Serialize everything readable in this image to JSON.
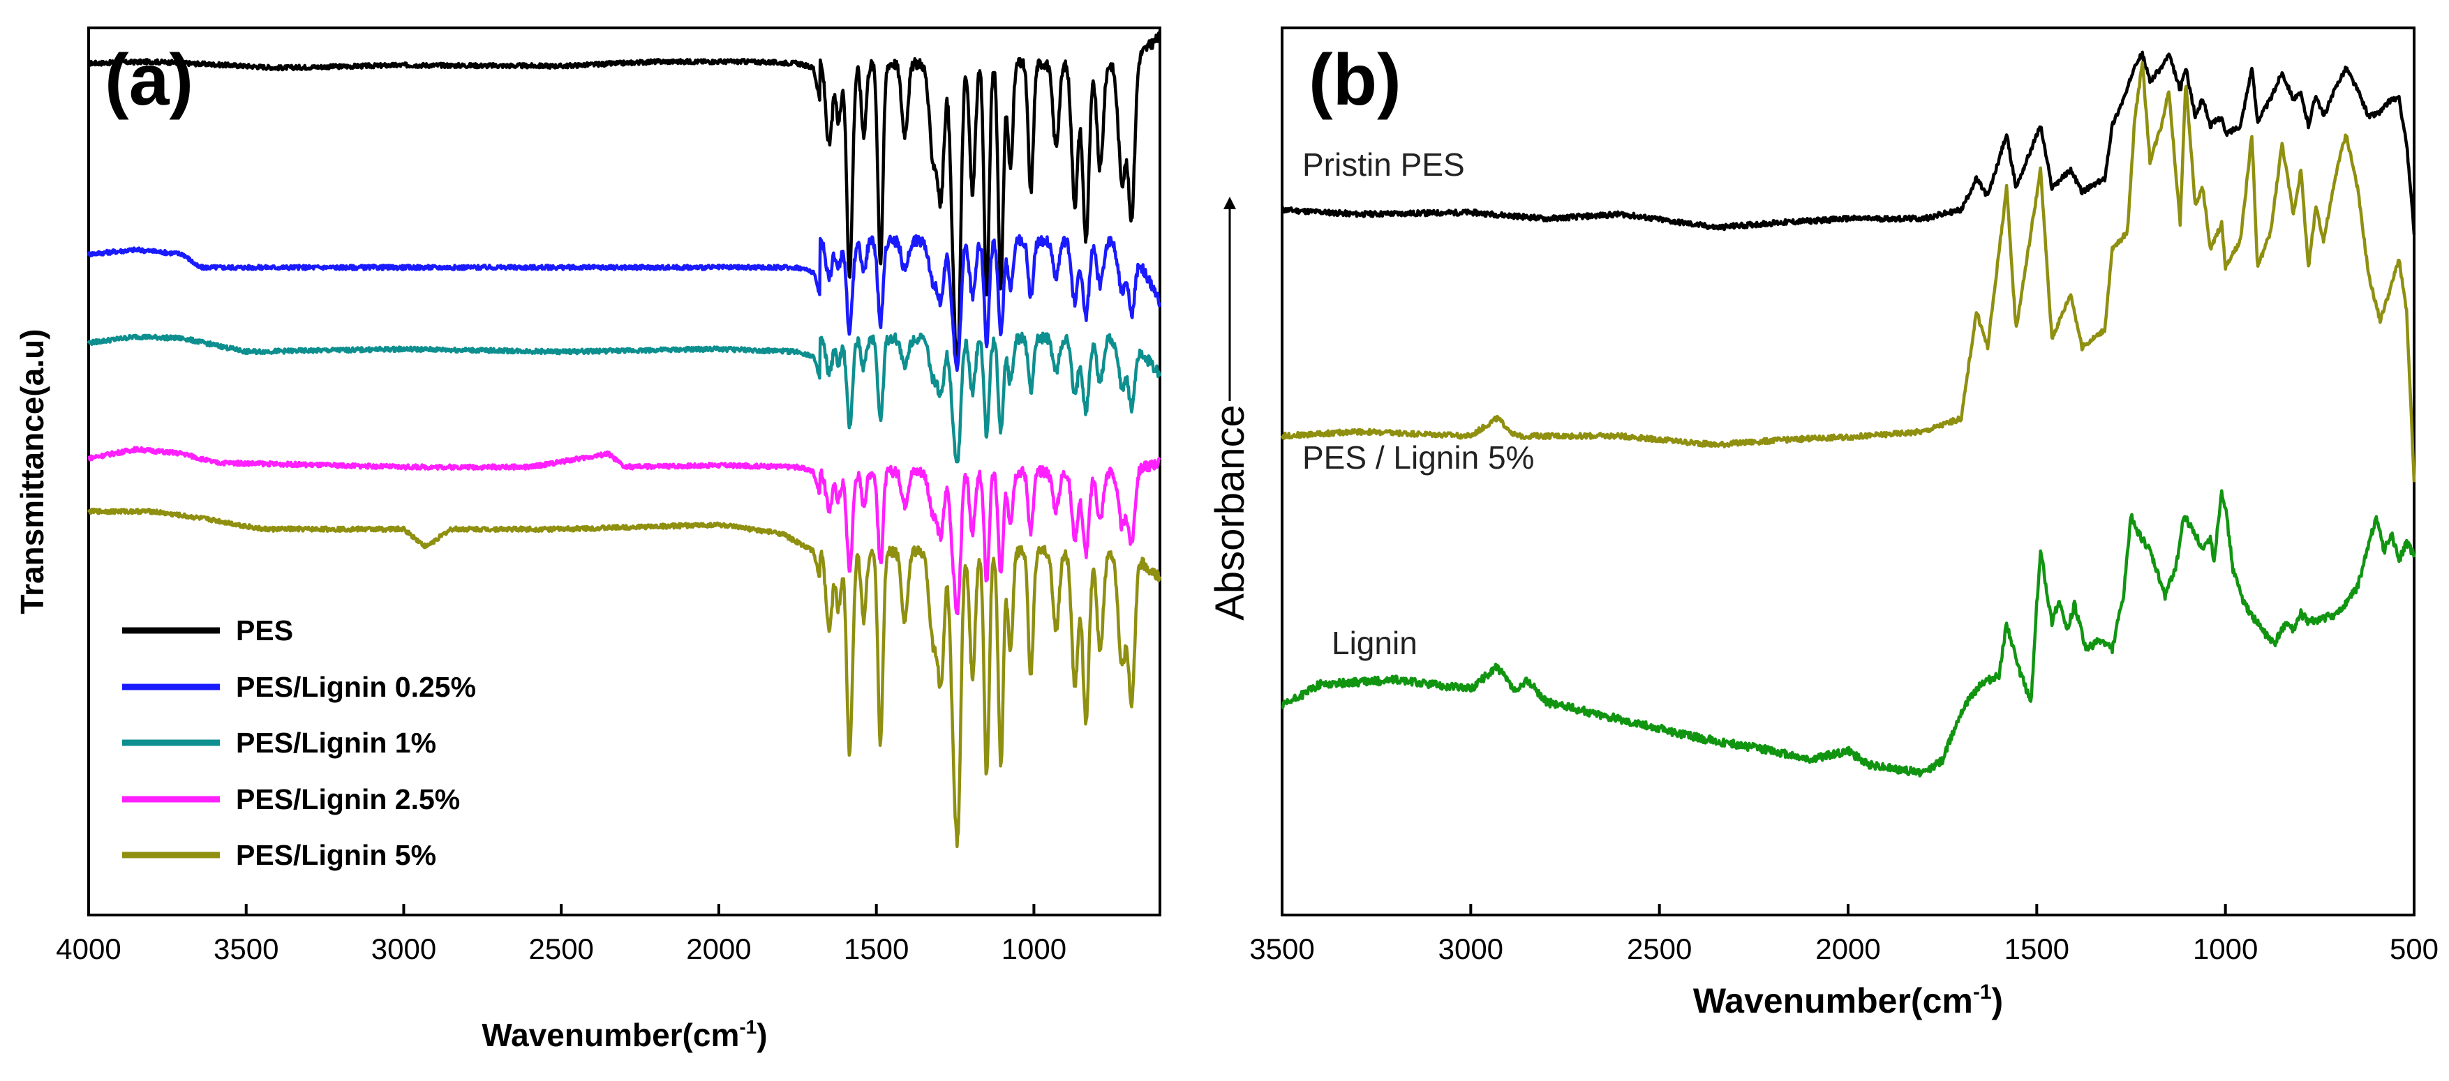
{
  "chart_data": [
    {
      "panel": "(a)",
      "type": "line",
      "title": "",
      "xlabel": "Wavenumber(cm",
      "xlabel_sup": "-1",
      "xlabel_end": ")",
      "ylabel": "Transmittance(a.u)",
      "xlim": [
        4000,
        600
      ],
      "ylim": [
        0,
        10
      ],
      "x_ticks": [
        4000,
        3500,
        3000,
        2500,
        2000,
        1500,
        1000
      ],
      "x_tick_labels": [
        "4000",
        "3500",
        "3000",
        "2500",
        "2000",
        "1500",
        "1000"
      ],
      "y_ticks_visible": false,
      "legend": {
        "placement": "bottom-left",
        "entries": [
          "PES",
          "PES/Lignin 0.25%",
          "PES/Lignin 1%",
          "PES/Lignin 2.5%",
          "PES/Lignin 5%"
        ]
      },
      "series": [
        {
          "name": "PES",
          "color": "#000000",
          "baseline": 9.6,
          "depth": 2.9,
          "end": 9.9,
          "points": [
            [
              4000,
              9.6
            ],
            [
              3800,
              9.62
            ],
            [
              3500,
              9.57
            ],
            [
              3400,
              9.55
            ],
            [
              3000,
              9.58
            ],
            [
              2500,
              9.57
            ],
            [
              2200,
              9.62
            ],
            [
              1900,
              9.62
            ],
            [
              1750,
              9.6
            ],
            [
              1700,
              9.55
            ],
            [
              1680,
              9.2
            ]
          ]
        },
        {
          "name": "PES/Lignin 0.25%",
          "color": "#1a1aff",
          "baseline": 7.6,
          "depth": 1.25,
          "end": 6.9,
          "points": [
            [
              4000,
              7.45
            ],
            [
              3850,
              7.5
            ],
            [
              3700,
              7.45
            ],
            [
              3650,
              7.3
            ],
            [
              3000,
              7.3
            ],
            [
              2500,
              7.3
            ],
            [
              2000,
              7.3
            ],
            [
              1750,
              7.3
            ],
            [
              1700,
              7.25
            ],
            [
              1680,
              7.0
            ]
          ]
        },
        {
          "name": "PES/Lignin 1%",
          "color": "#0e8f8f",
          "baseline": 6.5,
          "depth": 1.2,
          "end": 6.1,
          "points": [
            [
              4000,
              6.45
            ],
            [
              3850,
              6.52
            ],
            [
              3700,
              6.5
            ],
            [
              3500,
              6.35
            ],
            [
              3000,
              6.38
            ],
            [
              2500,
              6.35
            ],
            [
              2000,
              6.38
            ],
            [
              1750,
              6.35
            ],
            [
              1700,
              6.3
            ],
            [
              1680,
              6.05
            ]
          ]
        },
        {
          "name": "PES/Lignin 2.5%",
          "color": "#ff1fff",
          "baseline": 5.0,
          "depth": 1.35,
          "end": 5.1,
          "points": [
            [
              4000,
              5.15
            ],
            [
              3850,
              5.25
            ],
            [
              3700,
              5.2
            ],
            [
              3600,
              5.1
            ],
            [
              3000,
              5.05
            ],
            [
              2600,
              5.05
            ],
            [
              2350,
              5.2
            ],
            [
              2300,
              5.05
            ],
            [
              2000,
              5.07
            ],
            [
              1750,
              5.05
            ],
            [
              1700,
              5.0
            ],
            [
              1680,
              4.75
            ]
          ]
        },
        {
          "name": "PES/Lignin 5%",
          "color": "#8f8f10",
          "baseline": 4.1,
          "depth": 2.8,
          "end": 3.8,
          "points": [
            [
              4000,
              4.55
            ],
            [
              3800,
              4.55
            ],
            [
              3600,
              4.45
            ],
            [
              3450,
              4.35
            ],
            [
              3000,
              4.35
            ],
            [
              2930,
              4.15
            ],
            [
              2850,
              4.35
            ],
            [
              2500,
              4.35
            ],
            [
              2000,
              4.4
            ],
            [
              1800,
              4.3
            ],
            [
              1700,
              4.1
            ],
            [
              1680,
              3.8
            ]
          ]
        }
      ]
    },
    {
      "panel": "(b)",
      "type": "line",
      "title": "",
      "xlabel": "Wavenumber(cm",
      "xlabel_sup": "-1",
      "xlabel_end": ")",
      "ylabel": "Absorbance",
      "xlim": [
        3500,
        500
      ],
      "ylim": [
        0,
        10
      ],
      "x_ticks": [
        3500,
        3000,
        2500,
        2000,
        1500,
        1000,
        500
      ],
      "x_tick_labels": [
        "3500",
        "3000",
        "2500",
        "2000",
        "1500",
        "1000",
        "500"
      ],
      "y_ticks_visible": false,
      "annotations": [
        "Pristin PES",
        "PES / Lignin 5%",
        "Lignin"
      ],
      "series": [
        {
          "name": "Pristin PES",
          "color": "#000000",
          "points": [
            [
              3500,
              7.95
            ],
            [
              3300,
              7.9
            ],
            [
              3000,
              7.92
            ],
            [
              2800,
              7.85
            ],
            [
              2600,
              7.9
            ],
            [
              2350,
              7.75
            ],
            [
              2200,
              7.8
            ],
            [
              2000,
              7.85
            ],
            [
              1800,
              7.85
            ],
            [
              1700,
              7.95
            ],
            [
              1660,
              8.3
            ],
            [
              1630,
              8.1
            ],
            [
              1580,
              8.8
            ],
            [
              1555,
              8.2
            ],
            [
              1490,
              8.9
            ],
            [
              1460,
              8.2
            ],
            [
              1410,
              8.4
            ],
            [
              1380,
              8.15
            ],
            [
              1320,
              8.3
            ],
            [
              1300,
              8.9
            ],
            [
              1260,
              9.3
            ],
            [
              1240,
              9.6
            ],
            [
              1220,
              9.7
            ],
            [
              1200,
              9.4
            ],
            [
              1170,
              9.55
            ],
            [
              1150,
              9.7
            ],
            [
              1120,
              9.3
            ],
            [
              1105,
              9.55
            ],
            [
              1080,
              9.0
            ],
            [
              1060,
              9.2
            ],
            [
              1040,
              8.9
            ],
            [
              1010,
              9.0
            ],
            [
              1000,
              8.8
            ],
            [
              960,
              8.9
            ],
            [
              930,
              9.55
            ],
            [
              915,
              8.95
            ],
            [
              880,
              9.2
            ],
            [
              850,
              9.5
            ],
            [
              820,
              9.2
            ],
            [
              800,
              9.25
            ],
            [
              780,
              8.9
            ],
            [
              760,
              9.25
            ],
            [
              740,
              9.0
            ],
            [
              700,
              9.4
            ],
            [
              680,
              9.55
            ],
            [
              650,
              9.3
            ],
            [
              620,
              9.0
            ],
            [
              590,
              9.05
            ],
            [
              560,
              9.2
            ],
            [
              540,
              9.2
            ],
            [
              520,
              8.7
            ],
            [
              500,
              7.7
            ]
          ]
        },
        {
          "name": "PES / Lignin 5%",
          "color": "#8f8f10",
          "points": [
            [
              3500,
              5.4
            ],
            [
              3300,
              5.45
            ],
            [
              3000,
              5.4
            ],
            [
              2930,
              5.6
            ],
            [
              2880,
              5.4
            ],
            [
              2600,
              5.4
            ],
            [
              2350,
              5.3
            ],
            [
              2200,
              5.35
            ],
            [
              1950,
              5.4
            ],
            [
              1800,
              5.45
            ],
            [
              1700,
              5.6
            ],
            [
              1660,
              6.8
            ],
            [
              1630,
              6.4
            ],
            [
              1580,
              8.2
            ],
            [
              1555,
              6.6
            ],
            [
              1490,
              8.4
            ],
            [
              1460,
              6.5
            ],
            [
              1410,
              7.0
            ],
            [
              1380,
              6.4
            ],
            [
              1320,
              6.6
            ],
            [
              1300,
              7.5
            ],
            [
              1260,
              7.7
            ],
            [
              1240,
              9.0
            ],
            [
              1220,
              9.6
            ],
            [
              1200,
              8.5
            ],
            [
              1170,
              8.9
            ],
            [
              1150,
              9.3
            ],
            [
              1120,
              7.8
            ],
            [
              1105,
              9.4
            ],
            [
              1080,
              8.0
            ],
            [
              1060,
              8.2
            ],
            [
              1040,
              7.5
            ],
            [
              1010,
              7.8
            ],
            [
              1000,
              7.3
            ],
            [
              960,
              7.6
            ],
            [
              930,
              8.8
            ],
            [
              915,
              7.3
            ],
            [
              880,
              7.7
            ],
            [
              850,
              8.7
            ],
            [
              820,
              7.9
            ],
            [
              800,
              8.4
            ],
            [
              780,
              7.3
            ],
            [
              760,
              8.0
            ],
            [
              740,
              7.6
            ],
            [
              700,
              8.5
            ],
            [
              680,
              8.8
            ],
            [
              650,
              8.2
            ],
            [
              620,
              7.2
            ],
            [
              590,
              6.7
            ],
            [
              560,
              7.1
            ],
            [
              540,
              7.4
            ],
            [
              520,
              6.8
            ],
            [
              500,
              4.9
            ]
          ]
        },
        {
          "name": "Lignin",
          "color": "#119511",
          "points": [
            [
              3500,
              2.35
            ],
            [
              3400,
              2.6
            ],
            [
              3200,
              2.65
            ],
            [
              3000,
              2.55
            ],
            [
              2930,
              2.8
            ],
            [
              2880,
              2.5
            ],
            [
              2850,
              2.65
            ],
            [
              2800,
              2.4
            ],
            [
              2600,
              2.2
            ],
            [
              2400,
              2.0
            ],
            [
              2200,
              1.85
            ],
            [
              2100,
              1.75
            ],
            [
              2000,
              1.85
            ],
            [
              1950,
              1.7
            ],
            [
              1800,
              1.6
            ],
            [
              1750,
              1.75
            ],
            [
              1700,
              2.3
            ],
            [
              1650,
              2.6
            ],
            [
              1600,
              2.7
            ],
            [
              1580,
              3.3
            ],
            [
              1550,
              2.8
            ],
            [
              1515,
              2.4
            ],
            [
              1500,
              3.5
            ],
            [
              1490,
              4.1
            ],
            [
              1460,
              3.3
            ],
            [
              1440,
              3.55
            ],
            [
              1420,
              3.2
            ],
            [
              1400,
              3.5
            ],
            [
              1370,
              3.0
            ],
            [
              1330,
              3.1
            ],
            [
              1300,
              3.0
            ],
            [
              1270,
              3.6
            ],
            [
              1250,
              4.5
            ],
            [
              1230,
              4.3
            ],
            [
              1200,
              4.1
            ],
            [
              1160,
              3.6
            ],
            [
              1130,
              3.95
            ],
            [
              1110,
              4.5
            ],
            [
              1080,
              4.3
            ],
            [
              1060,
              4.1
            ],
            [
              1040,
              4.25
            ],
            [
              1030,
              4.0
            ],
            [
              1010,
              4.8
            ],
            [
              1000,
              4.6
            ],
            [
              980,
              3.9
            ],
            [
              950,
              3.5
            ],
            [
              900,
              3.2
            ],
            [
              870,
              3.05
            ],
            [
              840,
              3.3
            ],
            [
              820,
              3.2
            ],
            [
              800,
              3.4
            ],
            [
              780,
              3.3
            ],
            [
              700,
              3.4
            ],
            [
              650,
              3.7
            ],
            [
              600,
              4.5
            ],
            [
              580,
              4.1
            ],
            [
              560,
              4.3
            ],
            [
              540,
              4.0
            ],
            [
              520,
              4.2
            ],
            [
              500,
              4.05
            ]
          ]
        }
      ]
    }
  ]
}
